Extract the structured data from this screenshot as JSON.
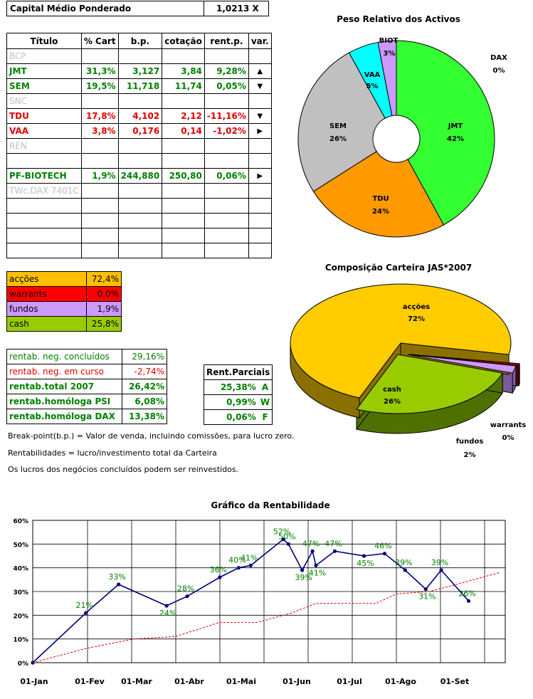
{
  "header": {
    "label": "Capital Médio Ponderado",
    "value": "1,0213 X"
  },
  "portfolio_table": {
    "columns": [
      "Título",
      "% Cart",
      "b.p.",
      "cotação",
      "rent.p.",
      "var."
    ],
    "rows": [
      {
        "title": "BCP",
        "style": "grey",
        "cart": "",
        "bp": "",
        "cot": "",
        "rent": "",
        "var": ""
      },
      {
        "title": "JMT",
        "style": "green",
        "cart": "31,3%",
        "bp": "3,127",
        "cot": "3,84",
        "rent": "9,28%",
        "var": "▲"
      },
      {
        "title": "SEM",
        "style": "green",
        "cart": "19,5%",
        "bp": "11,718",
        "cot": "11,74",
        "rent": "0,05%",
        "var": "▼"
      },
      {
        "title": "SNC",
        "style": "grey",
        "cart": "",
        "bp": "",
        "cot": "",
        "rent": "",
        "var": ""
      },
      {
        "title": "TDU",
        "style": "red",
        "cart": "17,8%",
        "bp": "4,102",
        "cot": "2,12",
        "rent": "-11,16%",
        "var": "▼"
      },
      {
        "title": "VAA",
        "style": "red",
        "cart": "3,8%",
        "bp": "0,176",
        "cot": "0,14",
        "rent": "-1,02%",
        "var": "▶"
      },
      {
        "title": "REN",
        "style": "grey",
        "cart": "",
        "bp": "",
        "cot": "",
        "rent": "",
        "var": ""
      },
      {
        "title": "",
        "style": "grey",
        "cart": "",
        "bp": "",
        "cot": "",
        "rent": "",
        "var": ""
      },
      {
        "title": "PF-BIOTECH",
        "style": "green",
        "cart": "1,9%",
        "bp": "244,880",
        "cot": "250,80",
        "rent": "0,06%",
        "var": "▶"
      },
      {
        "title": "TWc.DAX 7401C",
        "style": "grey",
        "cart": "",
        "bp": "",
        "cot": "",
        "rent": "",
        "var": ""
      },
      {
        "title": "",
        "style": "grey",
        "cart": "",
        "bp": "",
        "cot": "",
        "rent": "",
        "var": ""
      },
      {
        "title": "",
        "style": "grey",
        "cart": "",
        "bp": "",
        "cot": "",
        "rent": "",
        "var": ""
      },
      {
        "title": "",
        "style": "grey",
        "cart": "",
        "bp": "",
        "cot": "",
        "rent": "",
        "var": ""
      },
      {
        "title": "",
        "style": "grey",
        "cart": "",
        "bp": "",
        "cot": "",
        "rent": "",
        "var": ""
      }
    ]
  },
  "composition": [
    {
      "label": "acções",
      "value": "72,4%",
      "bg": "#ffc000"
    },
    {
      "label": "warrants",
      "value": "0,0%",
      "bg": "#ff0000"
    },
    {
      "label": "fundos",
      "value": "1,9%",
      "bg": "#cc99ff"
    },
    {
      "label": "cash",
      "value": "25,8%",
      "bg": "#99cc00"
    }
  ],
  "returns": [
    {
      "label": "rentab. neg. concluídos",
      "value": "29,16%",
      "style": "green-normal"
    },
    {
      "label": "rentab. neg. em curso",
      "value": "-2,74%",
      "style": "red-normal"
    },
    {
      "label": "rentab.total 2007",
      "value": "26,42%",
      "style": "green"
    },
    {
      "label": "rentab.homóloga PSI",
      "value": "6,08%",
      "style": "green"
    },
    {
      "label": "rentab.homóloga DAX",
      "value": "13,38%",
      "style": "green"
    }
  ],
  "partial": {
    "header": "Rent.Parciais",
    "rows": [
      {
        "value": "25,38%",
        "code": "A"
      },
      {
        "value": "0,99%",
        "code": "W"
      },
      {
        "value": "0,06%",
        "code": "F"
      }
    ]
  },
  "notes": [
    "Break-point(b.p.) = Valor de venda, incluindo comissões, para lucro zero.",
    "Rentabilidades = lucro/investimento total da Carteira",
    "Os lucros dos negócios concluídos podem ser reinvestidos."
  ],
  "colors": {
    "green": "#008000",
    "red": "#e00000",
    "grey": "#c0c0c0",
    "navy": "#000080"
  },
  "chart_data": [
    {
      "type": "pie",
      "title": "Peso Relativo dos Activos",
      "slices": [
        {
          "name": "JMT",
          "label": "42%",
          "value": 42,
          "color": "#33ff33"
        },
        {
          "name": "TDU",
          "label": "24%",
          "value": 24,
          "color": "#ff9900"
        },
        {
          "name": "SEM",
          "label": "26%",
          "value": 26,
          "color": "#c0c0c0"
        },
        {
          "name": "VAA",
          "label": "5%",
          "value": 5,
          "color": "#00ffff"
        },
        {
          "name": "BIOT",
          "label": "3%",
          "value": 3,
          "color": "#cc99ff"
        },
        {
          "name": "DAX",
          "label": "0%",
          "value": 0,
          "color": "#000000"
        }
      ]
    },
    {
      "type": "pie",
      "title": "Composição Carteira JAS*2007",
      "slices": [
        {
          "name": "acções",
          "label": "72%",
          "value": 72,
          "color": "#ffcc00"
        },
        {
          "name": "warrants",
          "label": "0%",
          "value": 0,
          "color": "#990000"
        },
        {
          "name": "fundos",
          "label": "2%",
          "value": 2,
          "color": "#cc99ff"
        },
        {
          "name": "cash",
          "label": "26%",
          "value": 26,
          "color": "#99cc00"
        }
      ]
    },
    {
      "type": "line",
      "title": "Gráfico da Rentabilidade",
      "x_tick_labels": [
        "01-Jan",
        "01-Fev",
        "01-Mar",
        "01-Abr",
        "01-Mai",
        "01-Jun",
        "01-Jul",
        "01-Ago",
        "01-Set"
      ],
      "y_tick_labels": [
        "0%",
        "10%",
        "20%",
        "30%",
        "40%",
        "50%",
        "60%"
      ],
      "ylim": [
        0,
        60
      ],
      "grid": true,
      "series": [
        {
          "style": "solid-markers",
          "color": "#000080",
          "points": [
            {
              "x": "2007-01-01",
              "y": 0,
              "label": ""
            },
            {
              "x": "2007-02-01",
              "y": 21,
              "label": "21%"
            },
            {
              "x": "2007-02-20",
              "y": 33,
              "label": "33%"
            },
            {
              "x": "2007-03-20",
              "y": 24,
              "label": "24%"
            },
            {
              "x": "2007-04-01",
              "y": 28,
              "label": "28%"
            },
            {
              "x": "2007-04-20",
              "y": 36,
              "label": "36%"
            },
            {
              "x": "2007-05-01",
              "y": 40,
              "label": "40%"
            },
            {
              "x": "2007-05-08",
              "y": 41,
              "label": "41%"
            },
            {
              "x": "2007-05-27",
              "y": 52,
              "label": "52%"
            },
            {
              "x": "2007-05-30",
              "y": 50,
              "label": "50%"
            },
            {
              "x": "2007-06-07",
              "y": 39,
              "label": "39%"
            },
            {
              "x": "2007-06-13",
              "y": 47,
              "label": "47%"
            },
            {
              "x": "2007-06-15",
              "y": 41,
              "label": "41%"
            },
            {
              "x": "2007-06-26",
              "y": 47,
              "label": "47%"
            },
            {
              "x": "2007-07-13",
              "y": 45,
              "label": "45%"
            },
            {
              "x": "2007-07-25",
              "y": 46,
              "label": "46%"
            },
            {
              "x": "2007-08-06",
              "y": 39,
              "label": "39%"
            },
            {
              "x": "2007-08-18",
              "y": 31,
              "label": "31%"
            },
            {
              "x": "2007-08-27",
              "y": 39,
              "label": "39%"
            },
            {
              "x": "2007-09-12",
              "y": 26,
              "label": "26%"
            }
          ]
        },
        {
          "style": "dashed",
          "color": "#e00000",
          "points": [
            {
              "x": "2007-01-01",
              "y": 0
            },
            {
              "x": "2007-02-01",
              "y": 6
            },
            {
              "x": "2007-03-01",
              "y": 10
            },
            {
              "x": "2007-03-25",
              "y": 11
            },
            {
              "x": "2007-04-20",
              "y": 17
            },
            {
              "x": "2007-05-12",
              "y": 17
            },
            {
              "x": "2007-06-01",
              "y": 21
            },
            {
              "x": "2007-06-15",
              "y": 25
            },
            {
              "x": "2007-07-20",
              "y": 25
            },
            {
              "x": "2007-08-01",
              "y": 29
            },
            {
              "x": "2007-08-20",
              "y": 30
            },
            {
              "x": "2007-09-05",
              "y": 33
            },
            {
              "x": "2007-09-30",
              "y": 38
            }
          ]
        }
      ]
    }
  ]
}
